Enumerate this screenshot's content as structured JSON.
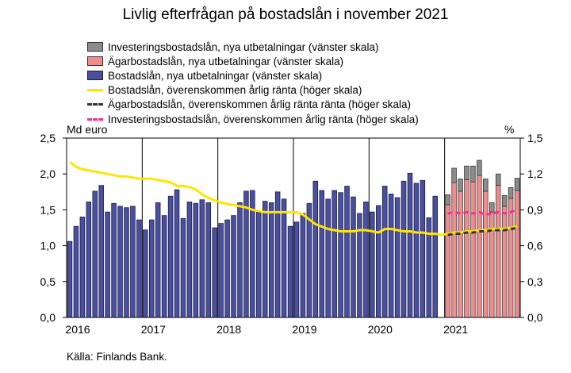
{
  "chart_data": {
    "type": "bar",
    "title": "Livlig efterfrågan på bostadslån i november 2021",
    "source": "Källa: Finlands Bank.",
    "y_left_unit": "Md euro",
    "y_right_unit": "%",
    "ylim_left": [
      0,
      2.5
    ],
    "ylim_right": [
      0,
      1.5
    ],
    "yticks_left": [
      "0,0",
      "0,5",
      "1,0",
      "1,5",
      "2,0",
      "2,5"
    ],
    "yticks_right": [
      "0,0",
      "0,3",
      "0,6",
      "0,9",
      "1,2",
      "1,5"
    ],
    "x_labels": [
      "2016",
      "2017",
      "2018",
      "2019",
      "2020",
      "2021"
    ],
    "colors": {
      "bostad_bar": "#4a4f9e",
      "agar_bar": "#f08c8c",
      "invest_bar": "#8c8c8c",
      "bostad_line": "#ffe600",
      "agar_line": "#333333",
      "invest_line": "#ff2a8c"
    },
    "legend": [
      {
        "label": "Investeringsbostadslån, nya utbetalningar (vänster skala)",
        "kind": "bar",
        "color_key": "invest_bar"
      },
      {
        "label": "Ägarbostadslån, nya utbetalningar (vänster skala)",
        "kind": "bar",
        "color_key": "agar_bar"
      },
      {
        "label": "Bostadslån, nya utbetalningar (vänster skala)",
        "kind": "bar",
        "color_key": "bostad_bar"
      },
      {
        "label": "Bostadslån, överenskommen årlig ränta (höger skala)",
        "kind": "line",
        "color_key": "bostad_line"
      },
      {
        "label": "Ägarbostadslån, överenskommen årlig ränta ränta (höger skala)",
        "kind": "dash",
        "color_key": "agar_line"
      },
      {
        "label": "Investeringsbostadslån, överenskommen årlig ränta (höger skala)",
        "kind": "dash",
        "color_key": "invest_line"
      }
    ],
    "series": [
      {
        "name": "Bostadslån, nya utbetalningar (vänster skala)",
        "axis": "left",
        "values": [
          1.06,
          1.27,
          1.4,
          1.61,
          1.76,
          1.84,
          1.47,
          1.59,
          1.55,
          1.53,
          1.55,
          1.36,
          1.22,
          1.36,
          1.6,
          1.42,
          1.69,
          1.78,
          1.38,
          1.61,
          1.59,
          1.64,
          1.6,
          1.25,
          1.31,
          1.36,
          1.42,
          1.6,
          1.76,
          1.77,
          1.47,
          1.62,
          1.6,
          1.75,
          1.65,
          1.27,
          1.33,
          1.45,
          1.59,
          1.9,
          1.77,
          1.65,
          1.77,
          1.74,
          1.83,
          1.68,
          1.45,
          1.61,
          1.47,
          1.56,
          1.83,
          1.72,
          1.67,
          1.9,
          2.01,
          1.87,
          1.91,
          1.39,
          1.69,
          null,
          null,
          null,
          null,
          null,
          null,
          null,
          null,
          null,
          null,
          null,
          null,
          null
        ]
      },
      {
        "name": "Ägarbostadslån, nya utbetalningar (vänster skala)",
        "axis": "left",
        "values": [
          null,
          null,
          null,
          null,
          null,
          null,
          null,
          null,
          null,
          null,
          null,
          null,
          null,
          null,
          null,
          null,
          null,
          null,
          null,
          null,
          null,
          null,
          null,
          null,
          null,
          null,
          null,
          null,
          null,
          null,
          null,
          null,
          null,
          null,
          null,
          null,
          null,
          null,
          null,
          null,
          null,
          null,
          null,
          null,
          null,
          null,
          null,
          null,
          null,
          null,
          null,
          null,
          null,
          null,
          null,
          null,
          null,
          null,
          null,
          null,
          1.57,
          1.88,
          1.76,
          1.92,
          1.89,
          1.98,
          1.76,
          1.47,
          1.84,
          1.55,
          1.66,
          1.77
        ]
      },
      {
        "name": "Investeringsbostadslån, nya utbetalningar (vänster skala)",
        "axis": "left",
        "values": [
          null,
          null,
          null,
          null,
          null,
          null,
          null,
          null,
          null,
          null,
          null,
          null,
          null,
          null,
          null,
          null,
          null,
          null,
          null,
          null,
          null,
          null,
          null,
          null,
          null,
          null,
          null,
          null,
          null,
          null,
          null,
          null,
          null,
          null,
          null,
          null,
          null,
          null,
          null,
          null,
          null,
          null,
          null,
          null,
          null,
          null,
          null,
          null,
          null,
          null,
          null,
          null,
          null,
          null,
          null,
          null,
          null,
          null,
          null,
          null,
          0.14,
          0.2,
          0.17,
          0.19,
          0.22,
          0.21,
          0.17,
          0.13,
          0.16,
          0.15,
          0.15,
          0.17
        ]
      },
      {
        "name": "Bostadslån, överenskommen årlig ränta (höger skala)",
        "axis": "right",
        "values": [
          1.3,
          1.26,
          1.24,
          1.23,
          1.22,
          1.21,
          1.2,
          1.19,
          1.18,
          1.18,
          1.17,
          1.16,
          1.16,
          1.16,
          1.15,
          1.14,
          1.13,
          1.1,
          1.1,
          1.09,
          1.07,
          1.03,
          1.0,
          0.98,
          0.96,
          0.95,
          0.94,
          0.93,
          0.92,
          0.9,
          0.89,
          0.88,
          0.88,
          0.88,
          0.88,
          0.88,
          0.88,
          0.86,
          0.82,
          0.78,
          0.76,
          0.74,
          0.73,
          0.72,
          0.72,
          0.72,
          0.73,
          0.73,
          0.72,
          0.71,
          0.74,
          0.74,
          0.73,
          0.72,
          0.72,
          0.71,
          0.71,
          0.7,
          0.7,
          0.69,
          0.7,
          0.71,
          0.71,
          0.72,
          0.72,
          0.73,
          0.73,
          0.74,
          0.74,
          0.74,
          0.75,
          0.76
        ]
      },
      {
        "name": "Ägarbostadslån, överenskommen årlig ränta ränta (höger skala)",
        "axis": "right",
        "values": [
          null,
          null,
          null,
          null,
          null,
          null,
          null,
          null,
          null,
          null,
          null,
          null,
          null,
          null,
          null,
          null,
          null,
          null,
          null,
          null,
          null,
          null,
          null,
          null,
          null,
          null,
          null,
          null,
          null,
          null,
          null,
          null,
          null,
          null,
          null,
          null,
          null,
          null,
          null,
          null,
          null,
          null,
          null,
          null,
          null,
          null,
          null,
          null,
          null,
          null,
          null,
          null,
          null,
          null,
          null,
          null,
          null,
          null,
          null,
          null,
          0.69,
          0.7,
          0.7,
          0.71,
          0.71,
          0.72,
          0.72,
          0.73,
          0.73,
          0.73,
          0.74,
          0.75
        ]
      },
      {
        "name": "Investeringsbostadslån, överenskommen årlig ränta (höger skala)",
        "axis": "right",
        "values": [
          null,
          null,
          null,
          null,
          null,
          null,
          null,
          null,
          null,
          null,
          null,
          null,
          null,
          null,
          null,
          null,
          null,
          null,
          null,
          null,
          null,
          null,
          null,
          null,
          null,
          null,
          null,
          null,
          null,
          null,
          null,
          null,
          null,
          null,
          null,
          null,
          null,
          null,
          null,
          null,
          null,
          null,
          null,
          null,
          null,
          null,
          null,
          null,
          null,
          null,
          null,
          null,
          null,
          null,
          null,
          null,
          null,
          null,
          null,
          null,
          0.87,
          0.88,
          0.87,
          0.88,
          0.87,
          0.88,
          0.86,
          0.87,
          0.88,
          0.87,
          0.88,
          0.91
        ]
      }
    ]
  }
}
